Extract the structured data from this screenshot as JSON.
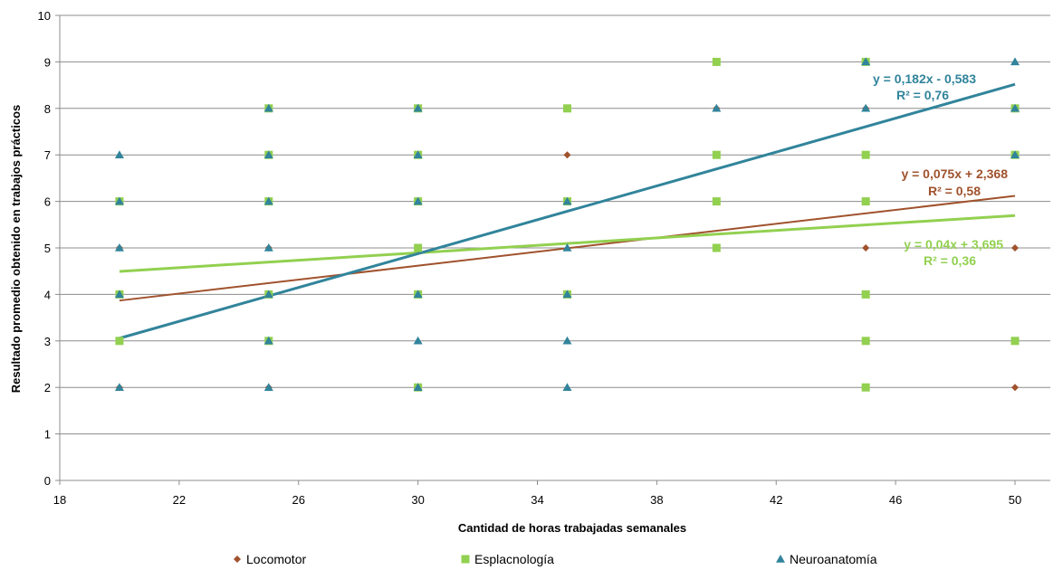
{
  "chart_data": {
    "type": "scatter",
    "title": "",
    "xlabel": "Cantidad de horas trabajadas semanales",
    "ylabel": "Resultado promedio obtenido en trabajos prácticos",
    "xlim": [
      18,
      50
    ],
    "ylim": [
      0,
      10
    ],
    "xticks": [
      "18",
      "22",
      "26",
      "30",
      "34",
      "38",
      "42",
      "46",
      "50"
    ],
    "yticks": [
      "0",
      "1",
      "2",
      "3",
      "4",
      "5",
      "6",
      "7",
      "8",
      "9",
      "10"
    ],
    "grid": "horizontal",
    "legend_position": "bottom",
    "series": [
      {
        "name": "Locomotor",
        "marker": "diamond",
        "color": "#A0522D",
        "points": [
          [
            20,
            2
          ],
          [
            20,
            3
          ],
          [
            20,
            4
          ],
          [
            20,
            5
          ],
          [
            20,
            6
          ],
          [
            25,
            2
          ],
          [
            25,
            3
          ],
          [
            25,
            4
          ],
          [
            25,
            5
          ],
          [
            25,
            6
          ],
          [
            25,
            7
          ],
          [
            25,
            8
          ],
          [
            30,
            2
          ],
          [
            30,
            4
          ],
          [
            30,
            5
          ],
          [
            30,
            6
          ],
          [
            30,
            7
          ],
          [
            30,
            8
          ],
          [
            35,
            4
          ],
          [
            35,
            6
          ],
          [
            35,
            7
          ],
          [
            40,
            6
          ],
          [
            40,
            8
          ],
          [
            45,
            5
          ],
          [
            45,
            8
          ],
          [
            50,
            2
          ],
          [
            50,
            5
          ],
          [
            50,
            7
          ]
        ],
        "trendline": {
          "slope": 0.075,
          "intercept": 2.368,
          "equation": "y = 0,075x + 2,368",
          "r2": "R² = 0,58"
        }
      },
      {
        "name": "Esplacnología",
        "marker": "square",
        "color": "#92D050",
        "points": [
          [
            20,
            3
          ],
          [
            20,
            4
          ],
          [
            20,
            6
          ],
          [
            25,
            3
          ],
          [
            25,
            4
          ],
          [
            25,
            6
          ],
          [
            25,
            7
          ],
          [
            25,
            8
          ],
          [
            30,
            2
          ],
          [
            30,
            4
          ],
          [
            30,
            5
          ],
          [
            30,
            6
          ],
          [
            30,
            7
          ],
          [
            30,
            8
          ],
          [
            35,
            4
          ],
          [
            35,
            6
          ],
          [
            35,
            8
          ],
          [
            40,
            5
          ],
          [
            40,
            6
          ],
          [
            40,
            7
          ],
          [
            40,
            9
          ],
          [
            45,
            2
          ],
          [
            45,
            3
          ],
          [
            45,
            4
          ],
          [
            45,
            6
          ],
          [
            45,
            7
          ],
          [
            45,
            9
          ],
          [
            50,
            3
          ],
          [
            50,
            7
          ],
          [
            50,
            8
          ]
        ],
        "trendline": {
          "slope": 0.04,
          "intercept": 3.695,
          "equation": "y = 0,04x + 3,695",
          "r2": "R² = 0,36"
        }
      },
      {
        "name": "Neuroanatomía",
        "marker": "triangle",
        "color": "#31849B",
        "points": [
          [
            20,
            2
          ],
          [
            20,
            4
          ],
          [
            20,
            5
          ],
          [
            20,
            6
          ],
          [
            20,
            7
          ],
          [
            25,
            2
          ],
          [
            25,
            3
          ],
          [
            25,
            4
          ],
          [
            25,
            5
          ],
          [
            25,
            6
          ],
          [
            25,
            7
          ],
          [
            25,
            8
          ],
          [
            30,
            2
          ],
          [
            30,
            3
          ],
          [
            30,
            4
          ],
          [
            30,
            6
          ],
          [
            30,
            7
          ],
          [
            30,
            8
          ],
          [
            35,
            2
          ],
          [
            35,
            3
          ],
          [
            35,
            4
          ],
          [
            35,
            5
          ],
          [
            35,
            6
          ],
          [
            40,
            8
          ],
          [
            45,
            8
          ],
          [
            45,
            9
          ],
          [
            50,
            7
          ],
          [
            50,
            8
          ],
          [
            50,
            9
          ]
        ],
        "trendline": {
          "slope": 0.182,
          "intercept": -0.583,
          "equation": "y = 0,182x - 0,583",
          "r2": "R² = 0,76"
        }
      }
    ]
  }
}
